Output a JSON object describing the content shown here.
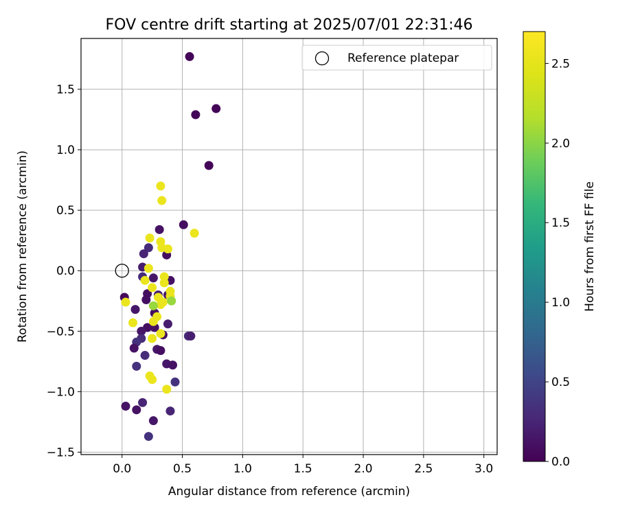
{
  "chart_data": {
    "type": "scatter",
    "title": "FOV centre drift starting at 2025/07/01 22:31:46",
    "xlabel": "Angular distance from reference (arcmin)",
    "ylabel": "Rotation from reference (arcmin)",
    "xlim": [
      -0.34,
      3.11
    ],
    "ylim": [
      -1.52,
      1.92
    ],
    "xticks": [
      0.0,
      0.5,
      1.0,
      1.5,
      2.0,
      2.5,
      3.0
    ],
    "xtick_labels": [
      "0.0",
      "0.5",
      "1.0",
      "1.5",
      "2.0",
      "2.5",
      "3.0"
    ],
    "yticks": [
      -1.5,
      -1.0,
      -0.5,
      0.0,
      0.5,
      1.0,
      1.5
    ],
    "ytick_labels": [
      "−1.5",
      "−1.0",
      "−0.5",
      "0.0",
      "0.5",
      "1.0",
      "1.5"
    ],
    "grid": true,
    "legend": {
      "placement": "top-right",
      "entries": [
        "Reference platepar"
      ]
    },
    "reference_point": {
      "x": 0.0,
      "y": 0.0
    },
    "colorbar": {
      "label": "Hours from first FF file",
      "range": [
        0.0,
        2.7
      ],
      "ticks": [
        0.0,
        0.5,
        1.0,
        1.5,
        2.0,
        2.5
      ],
      "tick_labels": [
        "0.0",
        "0.5",
        "1.0",
        "1.5",
        "2.0",
        "2.5"
      ],
      "colormap": "viridis"
    },
    "points": [
      {
        "x": 0.56,
        "y": 1.77,
        "t": 0.02
      },
      {
        "x": 0.78,
        "y": 1.34,
        "t": 0.02
      },
      {
        "x": 0.61,
        "y": 1.29,
        "t": 0.02
      },
      {
        "x": 0.72,
        "y": 0.87,
        "t": 0.02
      },
      {
        "x": 0.51,
        "y": 0.38,
        "t": 0.08
      },
      {
        "x": 0.31,
        "y": 0.34,
        "t": 0.12
      },
      {
        "x": 0.22,
        "y": 0.19,
        "t": 0.3
      },
      {
        "x": 0.18,
        "y": 0.14,
        "t": 0.25
      },
      {
        "x": 0.37,
        "y": 0.13,
        "t": 0.1
      },
      {
        "x": 0.17,
        "y": 0.03,
        "t": 0.2
      },
      {
        "x": 0.17,
        "y": -0.05,
        "t": 0.3
      },
      {
        "x": 0.26,
        "y": -0.06,
        "t": 0.15
      },
      {
        "x": 0.4,
        "y": -0.08,
        "t": 0.12
      },
      {
        "x": 0.21,
        "y": -0.19,
        "t": 0.1
      },
      {
        "x": 0.3,
        "y": -0.2,
        "t": 0.2
      },
      {
        "x": 0.38,
        "y": -0.2,
        "t": 0.15
      },
      {
        "x": 0.02,
        "y": -0.22,
        "t": 0.05
      },
      {
        "x": 0.2,
        "y": -0.24,
        "t": 0.1
      },
      {
        "x": 0.11,
        "y": -0.32,
        "t": 0.15
      },
      {
        "x": 0.27,
        "y": -0.35,
        "t": 0.1
      },
      {
        "x": 0.38,
        "y": -0.44,
        "t": 0.2
      },
      {
        "x": 0.21,
        "y": -0.47,
        "t": 0.1
      },
      {
        "x": 0.27,
        "y": -0.47,
        "t": 0.12
      },
      {
        "x": 0.16,
        "y": -0.5,
        "t": 0.15
      },
      {
        "x": 0.34,
        "y": -0.53,
        "t": 0.1
      },
      {
        "x": 0.55,
        "y": -0.54,
        "t": 0.3
      },
      {
        "x": 0.57,
        "y": -0.54,
        "t": 0.2
      },
      {
        "x": 0.16,
        "y": -0.56,
        "t": 0.3
      },
      {
        "x": 0.12,
        "y": -0.59,
        "t": 0.35
      },
      {
        "x": 0.1,
        "y": -0.64,
        "t": 0.12
      },
      {
        "x": 0.29,
        "y": -0.65,
        "t": 0.15
      },
      {
        "x": 0.32,
        "y": -0.66,
        "t": 0.1
      },
      {
        "x": 0.19,
        "y": -0.7,
        "t": 0.3
      },
      {
        "x": 0.37,
        "y": -0.77,
        "t": 0.15
      },
      {
        "x": 0.42,
        "y": -0.78,
        "t": 0.12
      },
      {
        "x": 0.12,
        "y": -0.79,
        "t": 0.35
      },
      {
        "x": 0.44,
        "y": -0.92,
        "t": 0.35
      },
      {
        "x": 0.17,
        "y": -1.09,
        "t": 0.25
      },
      {
        "x": 0.03,
        "y": -1.12,
        "t": 0.12
      },
      {
        "x": 0.12,
        "y": -1.15,
        "t": 0.12
      },
      {
        "x": 0.4,
        "y": -1.16,
        "t": 0.25
      },
      {
        "x": 0.26,
        "y": -1.24,
        "t": 0.15
      },
      {
        "x": 0.22,
        "y": -1.37,
        "t": 0.35
      },
      {
        "x": 0.32,
        "y": 0.7,
        "t": 2.55
      },
      {
        "x": 0.33,
        "y": 0.58,
        "t": 2.55
      },
      {
        "x": 0.6,
        "y": 0.31,
        "t": 2.55
      },
      {
        "x": 0.23,
        "y": 0.27,
        "t": 2.55
      },
      {
        "x": 0.32,
        "y": 0.24,
        "t": 2.55
      },
      {
        "x": 0.33,
        "y": 0.19,
        "t": 2.55
      },
      {
        "x": 0.38,
        "y": 0.18,
        "t": 2.55
      },
      {
        "x": 0.22,
        "y": 0.02,
        "t": 2.55
      },
      {
        "x": 0.35,
        "y": -0.05,
        "t": 2.55
      },
      {
        "x": 0.19,
        "y": -0.08,
        "t": 2.55
      },
      {
        "x": 0.35,
        "y": -0.1,
        "t": 2.55
      },
      {
        "x": 0.25,
        "y": -0.14,
        "t": 2.55
      },
      {
        "x": 0.4,
        "y": -0.17,
        "t": 2.55
      },
      {
        "x": 0.3,
        "y": -0.22,
        "t": 2.55
      },
      {
        "x": 0.4,
        "y": -0.21,
        "t": 2.55
      },
      {
        "x": 0.34,
        "y": -0.26,
        "t": 2.55
      },
      {
        "x": 0.32,
        "y": -0.28,
        "t": 2.55
      },
      {
        "x": 0.41,
        "y": -0.25,
        "t": 2.05
      },
      {
        "x": 0.26,
        "y": -0.29,
        "t": 2.05
      },
      {
        "x": 0.29,
        "y": -0.38,
        "t": 2.55
      },
      {
        "x": 0.26,
        "y": -0.42,
        "t": 2.55
      },
      {
        "x": 0.09,
        "y": -0.43,
        "t": 2.55
      },
      {
        "x": 0.32,
        "y": -0.52,
        "t": 2.55
      },
      {
        "x": 0.25,
        "y": -0.56,
        "t": 2.55
      },
      {
        "x": 0.23,
        "y": -0.87,
        "t": 2.55
      },
      {
        "x": 0.25,
        "y": -0.9,
        "t": 2.55
      },
      {
        "x": 0.37,
        "y": -0.98,
        "t": 2.55
      },
      {
        "x": 0.03,
        "y": -0.26,
        "t": 2.55
      }
    ]
  }
}
